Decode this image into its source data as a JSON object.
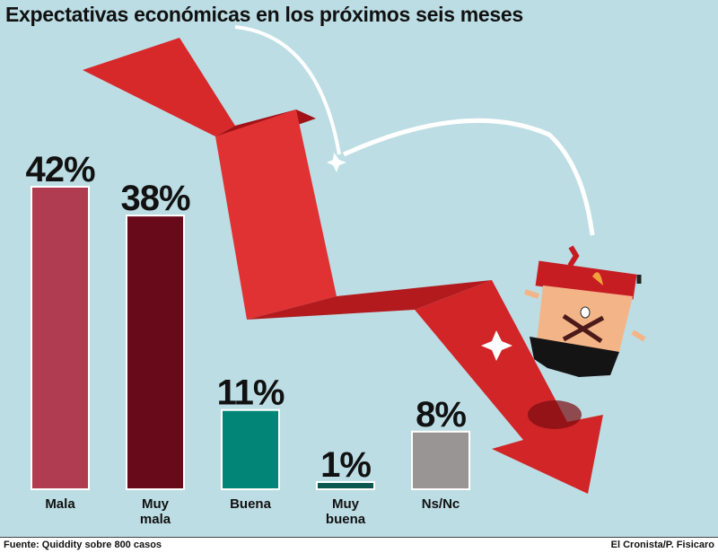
{
  "title": "Expectativas económicas en los próximos seis meses",
  "source": "Fuente: Quiddity sobre 800 casos",
  "credit": "El Cronista/P. Fisicaro",
  "chart_data": {
    "type": "bar",
    "title": "Expectativas económicas en los próximos seis meses",
    "xlabel": "",
    "ylabel": "",
    "ylim": [
      0,
      42
    ],
    "grid": false,
    "bars": [
      {
        "label": [
          "Mala"
        ],
        "value": 42,
        "display": "42%",
        "color": "#b03c52"
      },
      {
        "label": [
          "Muy",
          "mala"
        ],
        "value": 38,
        "display": "38%",
        "color": "#690a1b"
      },
      {
        "label": [
          "Buena"
        ],
        "value": 11,
        "display": "11%",
        "color": "#028577"
      },
      {
        "label": [
          "Muy",
          "buena"
        ],
        "value": 1,
        "display": "1%",
        "color": "#0b574f"
      },
      {
        "label": [
          "Ns/Nc"
        ],
        "value": 8,
        "display": "8%",
        "color": "#989594"
      }
    ]
  }
}
